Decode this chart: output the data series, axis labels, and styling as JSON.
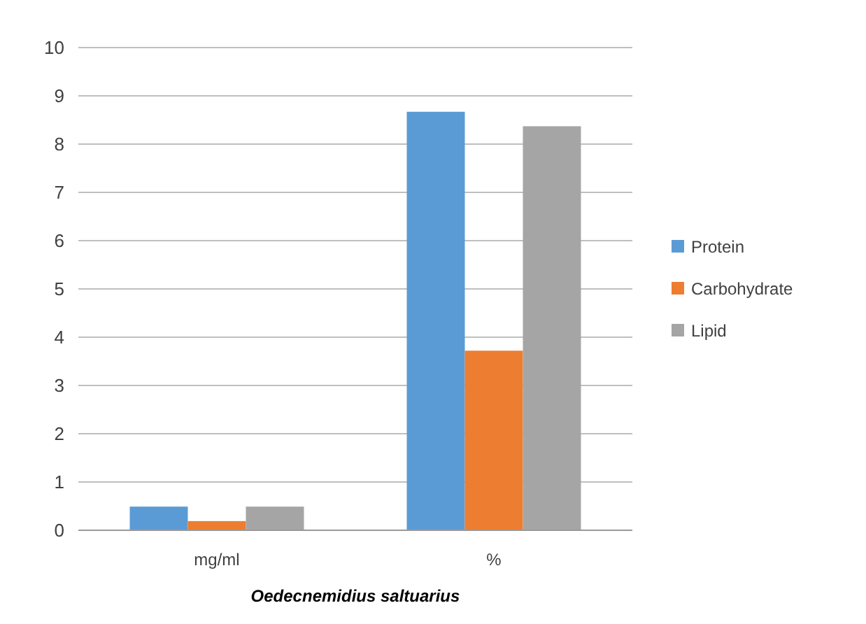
{
  "chart_data": {
    "type": "bar",
    "xlabel": "Oedecnemidius saltuarius",
    "categories": [
      "mg/ml",
      "%"
    ],
    "series": [
      {
        "name": "Protein",
        "color": "#5b9bd5",
        "values": [
          0.49,
          8.67
        ]
      },
      {
        "name": "Carbohydrate",
        "color": "#ed7d31",
        "values": [
          0.19,
          3.72
        ]
      },
      {
        "name": "Lipid",
        "color": "#a5a5a5",
        "values": [
          0.49,
          8.37
        ]
      }
    ],
    "ylim": [
      0,
      10
    ],
    "yticks": [
      0,
      1,
      2,
      3,
      4,
      5,
      6,
      7,
      8,
      9,
      10
    ],
    "grid": "y",
    "legend": "right"
  }
}
